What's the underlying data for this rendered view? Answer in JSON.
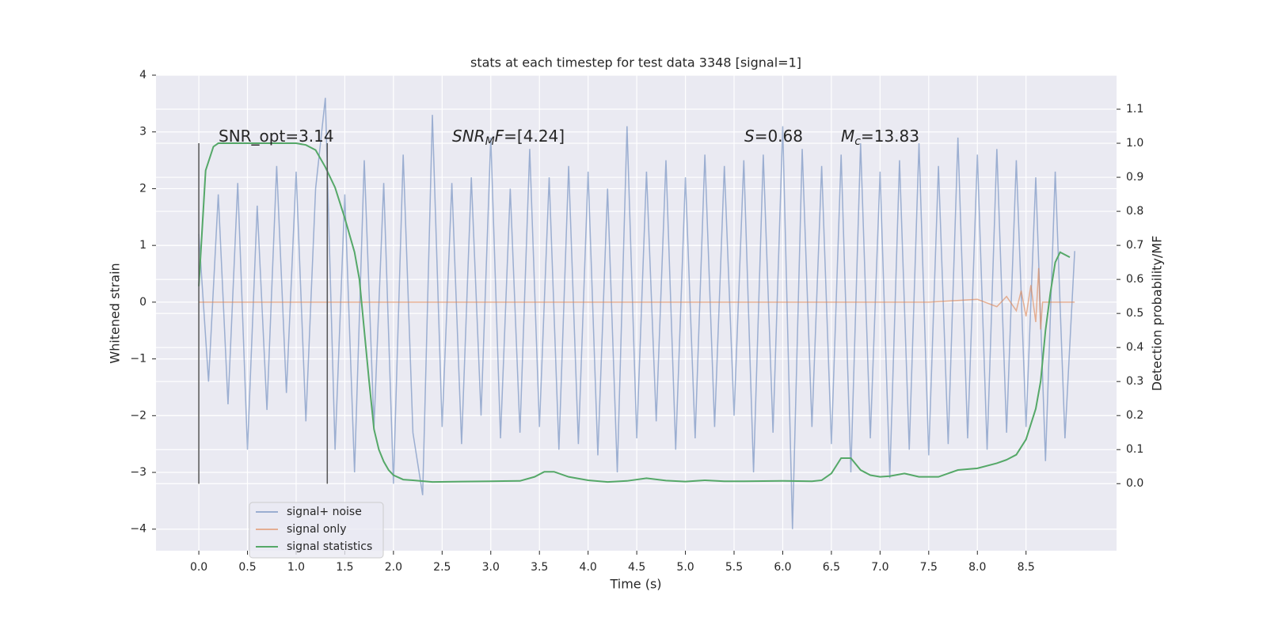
{
  "chart_data": {
    "type": "line",
    "title": "stats at each timestep for test data 3348 [signal=1]",
    "xlabel": "Time (s)",
    "ylabel": "Whitened strain",
    "y2label": "Detection probability/MF",
    "xlim": [
      -0.44,
      9.43
    ],
    "ylim": [
      -4.38,
      4.0
    ],
    "y2lim": [
      -0.197,
      1.2
    ],
    "xticks": [
      {
        "value": 0,
        "label": "0.0"
      },
      0.5,
      {
        "value": 1,
        "label": "1.0"
      },
      1.5,
      {
        "value": 2,
        "label": "2.0"
      },
      2.5,
      {
        "value": 3,
        "label": "3.0"
      },
      3.5,
      {
        "value": 4,
        "label": "4.0"
      },
      4.5,
      {
        "value": 5,
        "label": "5.0"
      },
      5.5,
      {
        "value": 6,
        "label": "6.0"
      },
      6.5,
      {
        "value": 7,
        "label": "7.0"
      },
      7.5,
      {
        "value": 8,
        "label": "8.0"
      },
      8.5
    ],
    "yticks": [
      {
        "value": -4,
        "label": "−4"
      },
      {
        "value": -3,
        "label": "−3"
      },
      {
        "value": -2,
        "label": "−2"
      },
      {
        "value": -1,
        "label": "−1"
      },
      0,
      1,
      2,
      3,
      4
    ],
    "y2ticks": [
      {
        "value": 0,
        "label": "0.0"
      },
      0.1,
      0.2,
      0.3,
      0.4,
      0.5,
      0.6,
      0.7,
      0.8,
      0.9,
      {
        "value": 1,
        "label": "1.0"
      },
      1.1
    ],
    "grid": true,
    "legend": "lower left",
    "series": [
      {
        "name": "signal+ noise",
        "color": "#4c72b0",
        "x": [
          0,
          0.1,
          0.2,
          0.3,
          0.4,
          0.5,
          0.6,
          0.7,
          0.8,
          0.9,
          1,
          1.1,
          1.2,
          1.3,
          1.4,
          1.5,
          1.6,
          1.7,
          1.8,
          1.9,
          2,
          2.1,
          2.2,
          2.3,
          2.4,
          2.5,
          2.6,
          2.7,
          2.8,
          2.9,
          3,
          3.1,
          3.2,
          3.3,
          3.4,
          3.5,
          3.6,
          3.7,
          3.8,
          3.9,
          4,
          4.1,
          4.2,
          4.3,
          4.4,
          4.5,
          4.6,
          4.7,
          4.8,
          4.9,
          5,
          5.1,
          5.2,
          5.3,
          5.4,
          5.5,
          5.6,
          5.7,
          5.8,
          5.9,
          6,
          6.1,
          6.2,
          6.3,
          6.4,
          6.5,
          6.6,
          6.7,
          6.8,
          6.9,
          7,
          7.1,
          7.2,
          7.3,
          7.4,
          7.5,
          7.6,
          7.7,
          7.8,
          7.9,
          8,
          8.1,
          8.2,
          8.3,
          8.4,
          8.5,
          8.6,
          8.7,
          8.8,
          8.9,
          9
        ],
        "values": [
          1.2,
          -1.4,
          1.9,
          -1.8,
          2.1,
          -2.6,
          1.7,
          -1.9,
          2.4,
          -1.6,
          2.3,
          -2.1,
          2.0,
          3.6,
          -2.6,
          1.9,
          -3.0,
          2.5,
          -2.2,
          2.1,
          -3.2,
          2.6,
          -2.3,
          -3.4,
          3.3,
          -2.2,
          2.1,
          -2.5,
          2.2,
          -2.0,
          2.9,
          -2.4,
          2.0,
          -2.3,
          2.7,
          -2.2,
          2.2,
          -2.6,
          2.4,
          -2.5,
          2.3,
          -2.7,
          2.0,
          -3.0,
          3.1,
          -2.4,
          2.3,
          -2.1,
          2.5,
          -2.6,
          2.2,
          -2.4,
          2.6,
          -2.2,
          2.4,
          -2.0,
          2.5,
          -3.0,
          2.6,
          -2.3,
          3.1,
          -4.0,
          2.7,
          -2.2,
          2.4,
          -2.5,
          2.6,
          -3.0,
          2.8,
          -2.4,
          2.3,
          -3.1,
          2.5,
          -2.6,
          2.8,
          -2.7,
          2.4,
          -2.5,
          2.9,
          -2.4,
          2.6,
          -2.6,
          2.7,
          -2.3,
          2.5,
          -2.2,
          2.2,
          -2.8,
          2.3,
          -2.4,
          0.9
        ]
      },
      {
        "name": "signal only",
        "color": "#dd8452",
        "x": [
          0,
          7.5,
          8.0,
          8.2,
          8.3,
          8.4,
          8.45,
          8.5,
          8.55,
          8.6,
          8.63,
          8.65,
          8.67,
          9.0
        ],
        "values": [
          0,
          0,
          0.05,
          -0.08,
          0.1,
          -0.15,
          0.2,
          -0.25,
          0.3,
          -0.35,
          0.6,
          -0.48,
          0,
          0
        ]
      },
      {
        "name": "signal statistics",
        "color": "#55a868",
        "axis": "y2",
        "x": [
          0,
          0.07,
          0.15,
          0.2,
          0.3,
          1.0,
          1.1,
          1.2,
          1.3,
          1.4,
          1.5,
          1.6,
          1.65,
          1.7,
          1.75,
          1.8,
          1.85,
          1.9,
          1.95,
          2.0,
          2.1,
          2.2,
          2.4,
          2.7,
          3.0,
          3.3,
          3.45,
          3.55,
          3.65,
          3.8,
          4.0,
          4.2,
          4.4,
          4.6,
          4.8,
          5.0,
          5.2,
          5.4,
          5.6,
          6.0,
          6.3,
          6.4,
          6.5,
          6.6,
          6.7,
          6.8,
          6.9,
          7.0,
          7.1,
          7.25,
          7.4,
          7.6,
          7.7,
          7.8,
          8.0,
          8.2,
          8.3,
          8.4,
          8.5,
          8.6,
          8.65,
          8.7,
          8.75,
          8.8,
          8.85,
          8.95
        ],
        "values": [
          0.58,
          0.92,
          0.99,
          1.0,
          1.0,
          1.0,
          0.995,
          0.98,
          0.93,
          0.87,
          0.78,
          0.68,
          0.6,
          0.45,
          0.3,
          0.16,
          0.1,
          0.065,
          0.04,
          0.025,
          0.012,
          0.01,
          0.005,
          0.006,
          0.007,
          0.008,
          0.02,
          0.035,
          0.035,
          0.02,
          0.01,
          0.005,
          0.008,
          0.016,
          0.009,
          0.006,
          0.01,
          0.007,
          0.007,
          0.008,
          0.007,
          0.01,
          0.03,
          0.075,
          0.075,
          0.04,
          0.025,
          0.02,
          0.022,
          0.03,
          0.02,
          0.02,
          0.03,
          0.04,
          0.045,
          0.06,
          0.07,
          0.085,
          0.13,
          0.22,
          0.3,
          0.45,
          0.56,
          0.65,
          0.68,
          0.665
        ]
      }
    ],
    "vlines": [
      {
        "x": 0,
        "ymin": -3.2,
        "ymax": 2.8,
        "color": "#555555"
      },
      {
        "x": 1.32,
        "ymin": -3.2,
        "ymax": 2.8,
        "color": "#555555"
      }
    ],
    "annotations": [
      {
        "segments": [
          {
            "text": "SNR_opt=3.14"
          }
        ]
      },
      {
        "segments": [
          {
            "text": "SNR",
            "italic": true
          },
          {
            "text": "M",
            "italic": true,
            "sub": true
          },
          {
            "text": "F",
            "italic": true
          },
          {
            "text": "=[4.24]"
          }
        ]
      },
      {
        "segments": [
          {
            "text": "S",
            "italic": true
          },
          {
            "text": "=0.68"
          }
        ]
      },
      {
        "segments": [
          {
            "text": "M",
            "italic": true
          },
          {
            "text": "c",
            "italic": true,
            "sub": true
          },
          {
            "text": "=13.83"
          }
        ]
      }
    ]
  }
}
